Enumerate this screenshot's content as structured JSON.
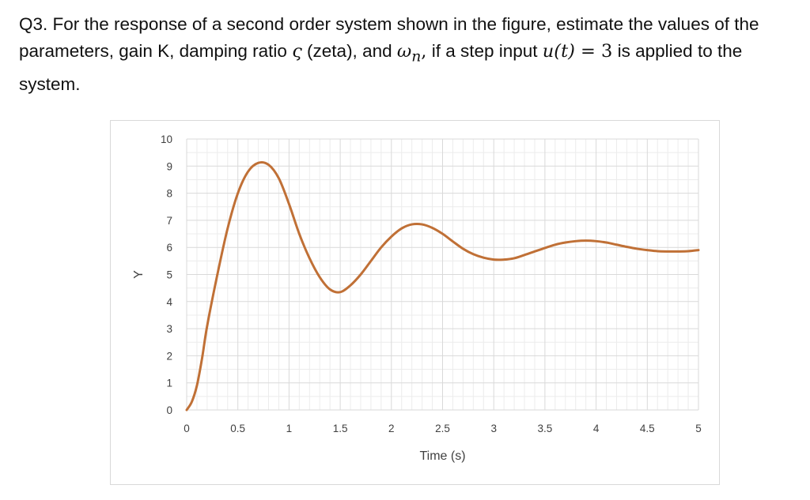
{
  "question": {
    "prefix": "Q3. For the response of a second order system shown in the figure, estimate the values of the parameters, gain K, damping ratio ",
    "zeta_symbol": "ς",
    "middle": " (zeta), and ",
    "omega_symbol": "ω",
    "omega_sub": "n",
    "comma": ",",
    "before_input": " if a step input ",
    "input_expr_lhs": "u(t)",
    "input_eq": " = 3",
    "suffix": " is applied to the system."
  },
  "chart_data": {
    "type": "line",
    "xlabel": "Time (s)",
    "ylabel": "Y",
    "xlim": [
      0,
      5
    ],
    "ylim": [
      0,
      10
    ],
    "x_ticks": [
      "0",
      "0.5",
      "1",
      "1.5",
      "2",
      "2.5",
      "3",
      "3.5",
      "4",
      "4.5",
      "5"
    ],
    "y_ticks": [
      "0",
      "1",
      "2",
      "3",
      "4",
      "5",
      "6",
      "7",
      "8",
      "9",
      "10"
    ],
    "grid": true,
    "line_color": "#c07036",
    "series": [
      {
        "x": [
          0,
          0.05,
          0.1,
          0.15,
          0.2,
          0.3,
          0.4,
          0.5,
          0.6,
          0.7,
          0.8,
          0.9,
          1.0,
          1.1,
          1.2,
          1.3,
          1.4,
          1.5,
          1.6,
          1.7,
          1.8,
          1.9,
          2.0,
          2.1,
          2.2,
          2.3,
          2.4,
          2.5,
          2.6,
          2.7,
          2.8,
          2.9,
          3.0,
          3.1,
          3.2,
          3.3,
          3.4,
          3.5,
          3.6,
          3.7,
          3.8,
          3.9,
          4.0,
          4.1,
          4.2,
          4.3,
          4.4,
          4.5,
          4.6,
          4.7,
          4.8,
          4.9,
          5.0
        ],
        "values": [
          0,
          0.3,
          0.9,
          1.9,
          3.1,
          5.0,
          6.7,
          8.0,
          8.8,
          9.12,
          9.05,
          8.55,
          7.6,
          6.5,
          5.6,
          4.9,
          4.45,
          4.35,
          4.6,
          5.0,
          5.5,
          6.0,
          6.4,
          6.7,
          6.85,
          6.85,
          6.72,
          6.5,
          6.22,
          5.95,
          5.75,
          5.62,
          5.55,
          5.55,
          5.6,
          5.72,
          5.85,
          5.98,
          6.1,
          6.18,
          6.23,
          6.25,
          6.23,
          6.18,
          6.1,
          6.02,
          5.95,
          5.9,
          5.86,
          5.85,
          5.85,
          5.86,
          5.9
        ]
      }
    ]
  }
}
